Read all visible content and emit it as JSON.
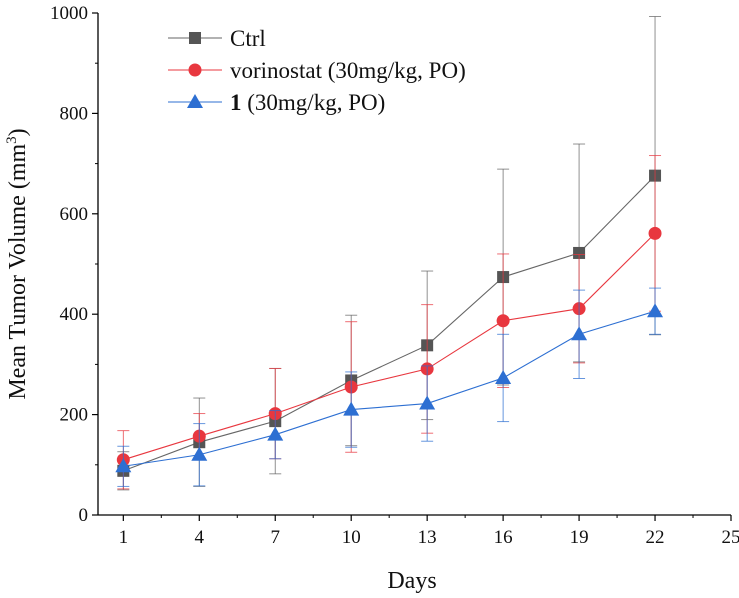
{
  "chart_data": {
    "type": "line",
    "title": "",
    "xlabel": "Days",
    "ylabel_main": "Mean Tumor Volume (mm",
    "ylabel_sup": "3",
    "ylabel_close": ")",
    "xlim": [
      0,
      25
    ],
    "ylim": [
      0,
      1000
    ],
    "xticks": [
      1,
      4,
      7,
      10,
      13,
      16,
      19,
      22,
      25
    ],
    "yticks": [
      0,
      200,
      400,
      600,
      800,
      1000
    ],
    "x": [
      1,
      4,
      7,
      10,
      13,
      16,
      19,
      22
    ],
    "legend_position": "top-left",
    "series": [
      {
        "name": "Ctrl",
        "legend_bold": "",
        "legend_text": "Ctrl",
        "color": "#555555",
        "line_color": "#666666",
        "marker": "square",
        "values": [
          88,
          145,
          187,
          268,
          338,
          474,
          522,
          676
        ],
        "error": [
          38,
          88,
          105,
          130,
          148,
          215,
          217,
          317
        ]
      },
      {
        "name": "vorinostat (30mg/kg, PO)",
        "legend_bold": "",
        "legend_text": "vorinostat (30mg/kg, PO)",
        "color": "#e8373f",
        "line_color": "#e8373f",
        "marker": "circle",
        "values": [
          110,
          157,
          202,
          255,
          291,
          387,
          411,
          561
        ],
        "error": [
          58,
          45,
          90,
          130,
          128,
          133,
          108,
          155
        ]
      },
      {
        "name": "1 (30mg/kg, PO)",
        "legend_bold": "1",
        "legend_text": " (30mg/kg, PO)",
        "color": "#2d6fd2",
        "line_color": "#2d6fd2",
        "marker": "triangle",
        "values": [
          97,
          120,
          160,
          210,
          222,
          273,
          360,
          406
        ],
        "error": [
          40,
          62,
          48,
          75,
          75,
          87,
          88,
          46
        ]
      }
    ]
  }
}
